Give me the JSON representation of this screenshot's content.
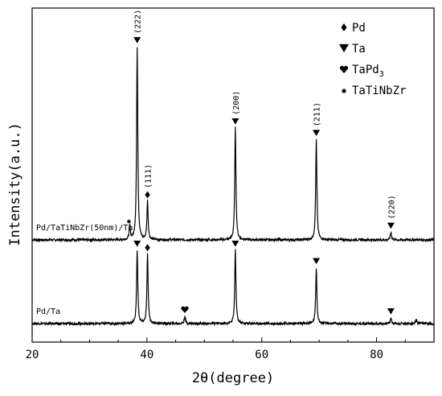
{
  "chart_data": {
    "type": "line",
    "xlabel": "2θ(degree)",
    "ylabel": "Intensity(a.u.)",
    "xlim": [
      20,
      90
    ],
    "x_ticks": [
      20,
      40,
      60,
      80
    ],
    "y_ticks_shown": false,
    "grid": false,
    "legend_placement": "top-right",
    "legend": [
      {
        "marker": "diamond",
        "label_main": "Pd",
        "label_sub": ""
      },
      {
        "marker": "down-triangle",
        "label_main": "Ta",
        "label_sub": ""
      },
      {
        "marker": "heart",
        "label_main": "TaPd",
        "label_sub": "3"
      },
      {
        "marker": "dot",
        "label_main": "TaTiNbZr",
        "label_sub": ""
      }
    ],
    "series": [
      {
        "name": "Pd/TaTiNbZr(50nm)/Ta",
        "baseline": 1.0,
        "peaks": [
          {
            "x": 37.0,
            "height": 0.07,
            "phase": "TaTiNbZr",
            "hkl": ""
          },
          {
            "x": 38.3,
            "height": 1.0,
            "phase": "Ta",
            "hkl": "(222)"
          },
          {
            "x": 40.1,
            "height": 0.2,
            "phase": "Pd",
            "hkl": "(111)"
          },
          {
            "x": 55.4,
            "height": 0.58,
            "phase": "Ta",
            "hkl": "(200)"
          },
          {
            "x": 69.5,
            "height": 0.52,
            "phase": "Ta",
            "hkl": "(211)"
          },
          {
            "x": 82.5,
            "height": 0.04,
            "phase": "Ta",
            "hkl": "(220)"
          }
        ]
      },
      {
        "name": "Pd/Ta",
        "baseline": 0.0,
        "peaks": [
          {
            "x": 38.3,
            "height": 0.38,
            "phase": "Ta",
            "hkl": ""
          },
          {
            "x": 40.1,
            "height": 0.36,
            "phase": "Pd",
            "hkl": ""
          },
          {
            "x": 46.6,
            "height": 0.04,
            "phase": "TaPd3",
            "hkl": ""
          },
          {
            "x": 55.4,
            "height": 0.38,
            "phase": "Ta",
            "hkl": ""
          },
          {
            "x": 69.5,
            "height": 0.29,
            "phase": "Ta",
            "hkl": ""
          },
          {
            "x": 82.5,
            "height": 0.03,
            "phase": "Ta",
            "hkl": ""
          },
          {
            "x": 86.9,
            "height": 0.02,
            "phase": "",
            "hkl": ""
          }
        ]
      }
    ]
  }
}
